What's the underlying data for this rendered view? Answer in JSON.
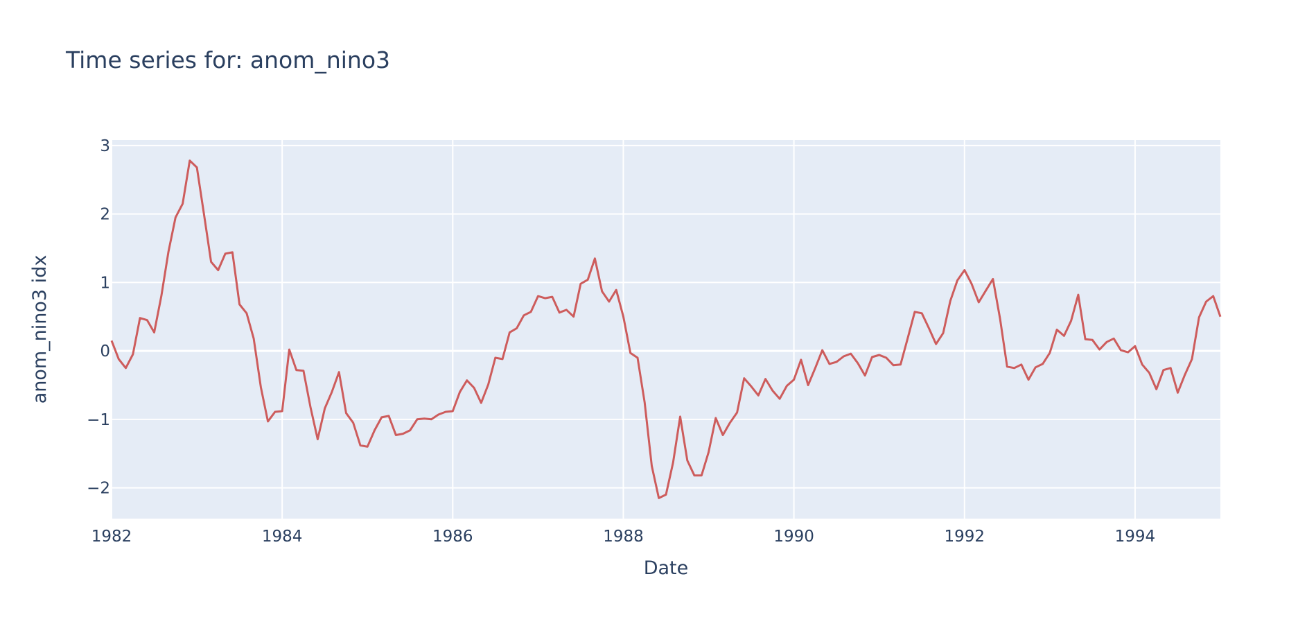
{
  "chart_data": {
    "type": "line",
    "title": "Time series for: anom_nino3",
    "xlabel": "Date",
    "ylabel": "anom_nino3 idx",
    "xlim": [
      "1982-01",
      "1995-01"
    ],
    "ylim": [
      -2.45,
      3.08
    ],
    "x_ticks": [
      1982,
      1984,
      1986,
      1988,
      1990,
      1992,
      1994
    ],
    "x_tick_labels": [
      "1982",
      "1984",
      "1986",
      "1988",
      "1990",
      "1992",
      "1994"
    ],
    "y_ticks": [
      -2,
      -1,
      0,
      1,
      2,
      3
    ],
    "y_tick_labels": [
      "−2",
      "−1",
      "0",
      "1",
      "2",
      "3"
    ],
    "grid": true,
    "legend": false,
    "series": [
      {
        "color": "#cd5c5c",
        "x": [
          "1982-01",
          "1982-02",
          "1982-03",
          "1982-04",
          "1982-05",
          "1982-06",
          "1982-07",
          "1982-08",
          "1982-09",
          "1982-10",
          "1982-11",
          "1982-12",
          "1983-01",
          "1983-02",
          "1983-03",
          "1983-04",
          "1983-05",
          "1983-06",
          "1983-07",
          "1983-08",
          "1983-09",
          "1983-10",
          "1983-11",
          "1983-12",
          "1984-01",
          "1984-02",
          "1984-03",
          "1984-04",
          "1984-05",
          "1984-06",
          "1984-07",
          "1984-08",
          "1984-09",
          "1984-10",
          "1984-11",
          "1984-12",
          "1985-01",
          "1985-02",
          "1985-03",
          "1985-04",
          "1985-05",
          "1985-06",
          "1985-07",
          "1985-08",
          "1985-09",
          "1985-10",
          "1985-11",
          "1985-12",
          "1986-01",
          "1986-02",
          "1986-03",
          "1986-04",
          "1986-05",
          "1986-06",
          "1986-07",
          "1986-08",
          "1986-09",
          "1986-10",
          "1986-11",
          "1986-12",
          "1987-01",
          "1987-02",
          "1987-03",
          "1987-04",
          "1987-05",
          "1987-06",
          "1987-07",
          "1987-08",
          "1987-09",
          "1987-10",
          "1987-11",
          "1987-12",
          "1988-01",
          "1988-02",
          "1988-03",
          "1988-04",
          "1988-05",
          "1988-06",
          "1988-07",
          "1988-08",
          "1988-09",
          "1988-10",
          "1988-11",
          "1988-12",
          "1989-01",
          "1989-02",
          "1989-03",
          "1989-04",
          "1989-05",
          "1989-06",
          "1989-07",
          "1989-08",
          "1989-09",
          "1989-10",
          "1989-11",
          "1989-12",
          "1990-01",
          "1990-02",
          "1990-03",
          "1990-04",
          "1990-05",
          "1990-06",
          "1990-07",
          "1990-08",
          "1990-09",
          "1990-10",
          "1990-11",
          "1990-12",
          "1991-01",
          "1991-02",
          "1991-03",
          "1991-04",
          "1991-05",
          "1991-06",
          "1991-07",
          "1991-08",
          "1991-09",
          "1991-10",
          "1991-11",
          "1991-12",
          "1992-01",
          "1992-02",
          "1992-03",
          "1992-04",
          "1992-05",
          "1992-06",
          "1992-07",
          "1992-08",
          "1992-09",
          "1992-10",
          "1992-11",
          "1992-12",
          "1993-01",
          "1993-02",
          "1993-03",
          "1993-04",
          "1993-05",
          "1993-06",
          "1993-07",
          "1993-08",
          "1993-09",
          "1993-10",
          "1993-11",
          "1993-12",
          "1994-01",
          "1994-02",
          "1994-03",
          "1994-04",
          "1994-05",
          "1994-06",
          "1994-07",
          "1994-08",
          "1994-09",
          "1994-10",
          "1994-11",
          "1994-12",
          "1995-01"
        ],
        "y": [
          0.15,
          -0.12,
          -0.25,
          -0.05,
          0.48,
          0.45,
          0.27,
          0.8,
          1.45,
          1.95,
          2.15,
          2.78,
          2.68,
          2.0,
          1.3,
          1.18,
          1.42,
          1.44,
          0.68,
          0.55,
          0.18,
          -0.53,
          -1.03,
          -0.89,
          -0.88,
          0.02,
          -0.28,
          -0.29,
          -0.83,
          -1.29,
          -0.84,
          -0.6,
          -0.31,
          -0.91,
          -1.05,
          -1.38,
          -1.4,
          -1.16,
          -0.97,
          -0.95,
          -1.23,
          -1.21,
          -1.16,
          -1.0,
          -0.99,
          -1.0,
          -0.93,
          -0.89,
          -0.88,
          -0.6,
          -0.43,
          -0.54,
          -0.76,
          -0.49,
          -0.1,
          -0.12,
          0.27,
          0.33,
          0.52,
          0.57,
          0.8,
          0.77,
          0.79,
          0.56,
          0.6,
          0.5,
          0.98,
          1.04,
          1.35,
          0.87,
          0.72,
          0.89,
          0.5,
          -0.03,
          -0.1,
          -0.75,
          -1.68,
          -2.15,
          -2.1,
          -1.63,
          -0.96,
          -1.6,
          -1.82,
          -1.82,
          -1.48,
          -0.98,
          -1.23,
          -1.05,
          -0.9,
          -0.4,
          -0.52,
          -0.65,
          -0.41,
          -0.58,
          -0.7,
          -0.51,
          -0.42,
          -0.13,
          -0.5,
          -0.25,
          0.01,
          -0.19,
          -0.16,
          -0.08,
          -0.04,
          -0.18,
          -0.36,
          -0.09,
          -0.06,
          -0.1,
          -0.21,
          -0.2,
          0.18,
          0.57,
          0.55,
          0.33,
          0.1,
          0.26,
          0.73,
          1.03,
          1.18,
          0.98,
          0.71,
          0.88,
          1.05,
          0.47,
          -0.23,
          -0.25,
          -0.2,
          -0.42,
          -0.24,
          -0.19,
          -0.03,
          0.31,
          0.22,
          0.44,
          0.82,
          0.17,
          0.16,
          0.02,
          0.13,
          0.18,
          0.01,
          -0.02,
          0.07,
          -0.2,
          -0.32,
          -0.56,
          -0.28,
          -0.25,
          -0.61,
          -0.35,
          -0.12,
          0.49,
          0.72,
          0.8,
          0.5
        ]
      }
    ]
  }
}
